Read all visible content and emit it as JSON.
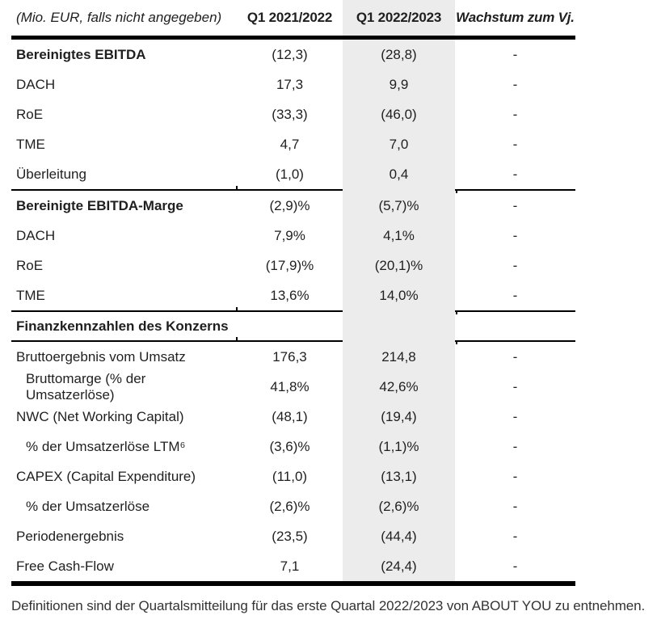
{
  "header": {
    "metric_col": "(Mio. EUR, falls nicht angegeben)",
    "col1": "Q1 2021/2022",
    "col2": "Q1 2022/2023",
    "col3": "Wachstum zum Vj."
  },
  "colors": {
    "highlight_column": "#ececec",
    "rule_line": "#000000",
    "text": "#1f1f1f"
  },
  "table": {
    "rows": [
      {
        "label": "Bereinigtes EBITDA",
        "q1_2021_2022": "(12,3)",
        "q1_2022_2023": "(28,8)",
        "growth": "-"
      },
      {
        "label": "DACH",
        "q1_2021_2022": "17,3",
        "q1_2022_2023": "9,9",
        "growth": "-"
      },
      {
        "label": "RoE",
        "q1_2021_2022": "(33,3)",
        "q1_2022_2023": "(46,0)",
        "growth": "-"
      },
      {
        "label": "TME",
        "q1_2021_2022": "4,7",
        "q1_2022_2023": "7,0",
        "growth": "-"
      },
      {
        "label": "Überleitung",
        "q1_2021_2022": "(1,0)",
        "q1_2022_2023": "0,4",
        "growth": "-"
      },
      {
        "label": "Bereinigte EBITDA-Marge",
        "q1_2021_2022": "(2,9)%",
        "q1_2022_2023": "(5,7)%",
        "growth": "-"
      },
      {
        "label": "DACH",
        "q1_2021_2022": "7,9%",
        "q1_2022_2023": "4,1%",
        "growth": "-"
      },
      {
        "label": "RoE",
        "q1_2021_2022": "(17,9)%",
        "q1_2022_2023": "(20,1)%",
        "growth": "-"
      },
      {
        "label": "TME",
        "q1_2021_2022": "13,6%",
        "q1_2022_2023": "14,0%",
        "growth": "-"
      },
      {
        "label": "Finanzkennzahlen des Konzerns",
        "q1_2021_2022": "",
        "q1_2022_2023": "",
        "growth": ""
      },
      {
        "label": "Bruttoergebnis vom Umsatz",
        "q1_2021_2022": "176,3",
        "q1_2022_2023": "214,8",
        "growth": "-"
      },
      {
        "label": "Bruttomarge (% der Umsatzerlöse)",
        "q1_2021_2022": "41,8%",
        "q1_2022_2023": "42,6%",
        "growth": "-"
      },
      {
        "label": "NWC (Net Working Capital)",
        "q1_2021_2022": "(48,1)",
        "q1_2022_2023": "(19,4)",
        "growth": "-"
      },
      {
        "label": "% der Umsatzerlöse LTM⁶",
        "q1_2021_2022": "(3,6)%",
        "q1_2022_2023": "(1,1)%",
        "growth": "-"
      },
      {
        "label": "CAPEX (Capital Expenditure)",
        "q1_2021_2022": "(11,0)",
        "q1_2022_2023": "(13,1)",
        "growth": "-"
      },
      {
        "label": "% der Umsatzerlöse",
        "q1_2021_2022": "(2,6)%",
        "q1_2022_2023": "(2,6)%",
        "growth": "-"
      },
      {
        "label": "Periodenergebnis",
        "q1_2021_2022": "(23,5)",
        "q1_2022_2023": "(44,4)",
        "growth": "-"
      },
      {
        "label": "Free Cash-Flow",
        "q1_2021_2022": "7,1",
        "q1_2022_2023": "(24,4)",
        "growth": "-"
      }
    ]
  },
  "footer": {
    "note": "Definitionen sind der Quartalsmitteilung für das erste Quartal 2022/2023 von ABOUT YOU zu entnehmen."
  }
}
